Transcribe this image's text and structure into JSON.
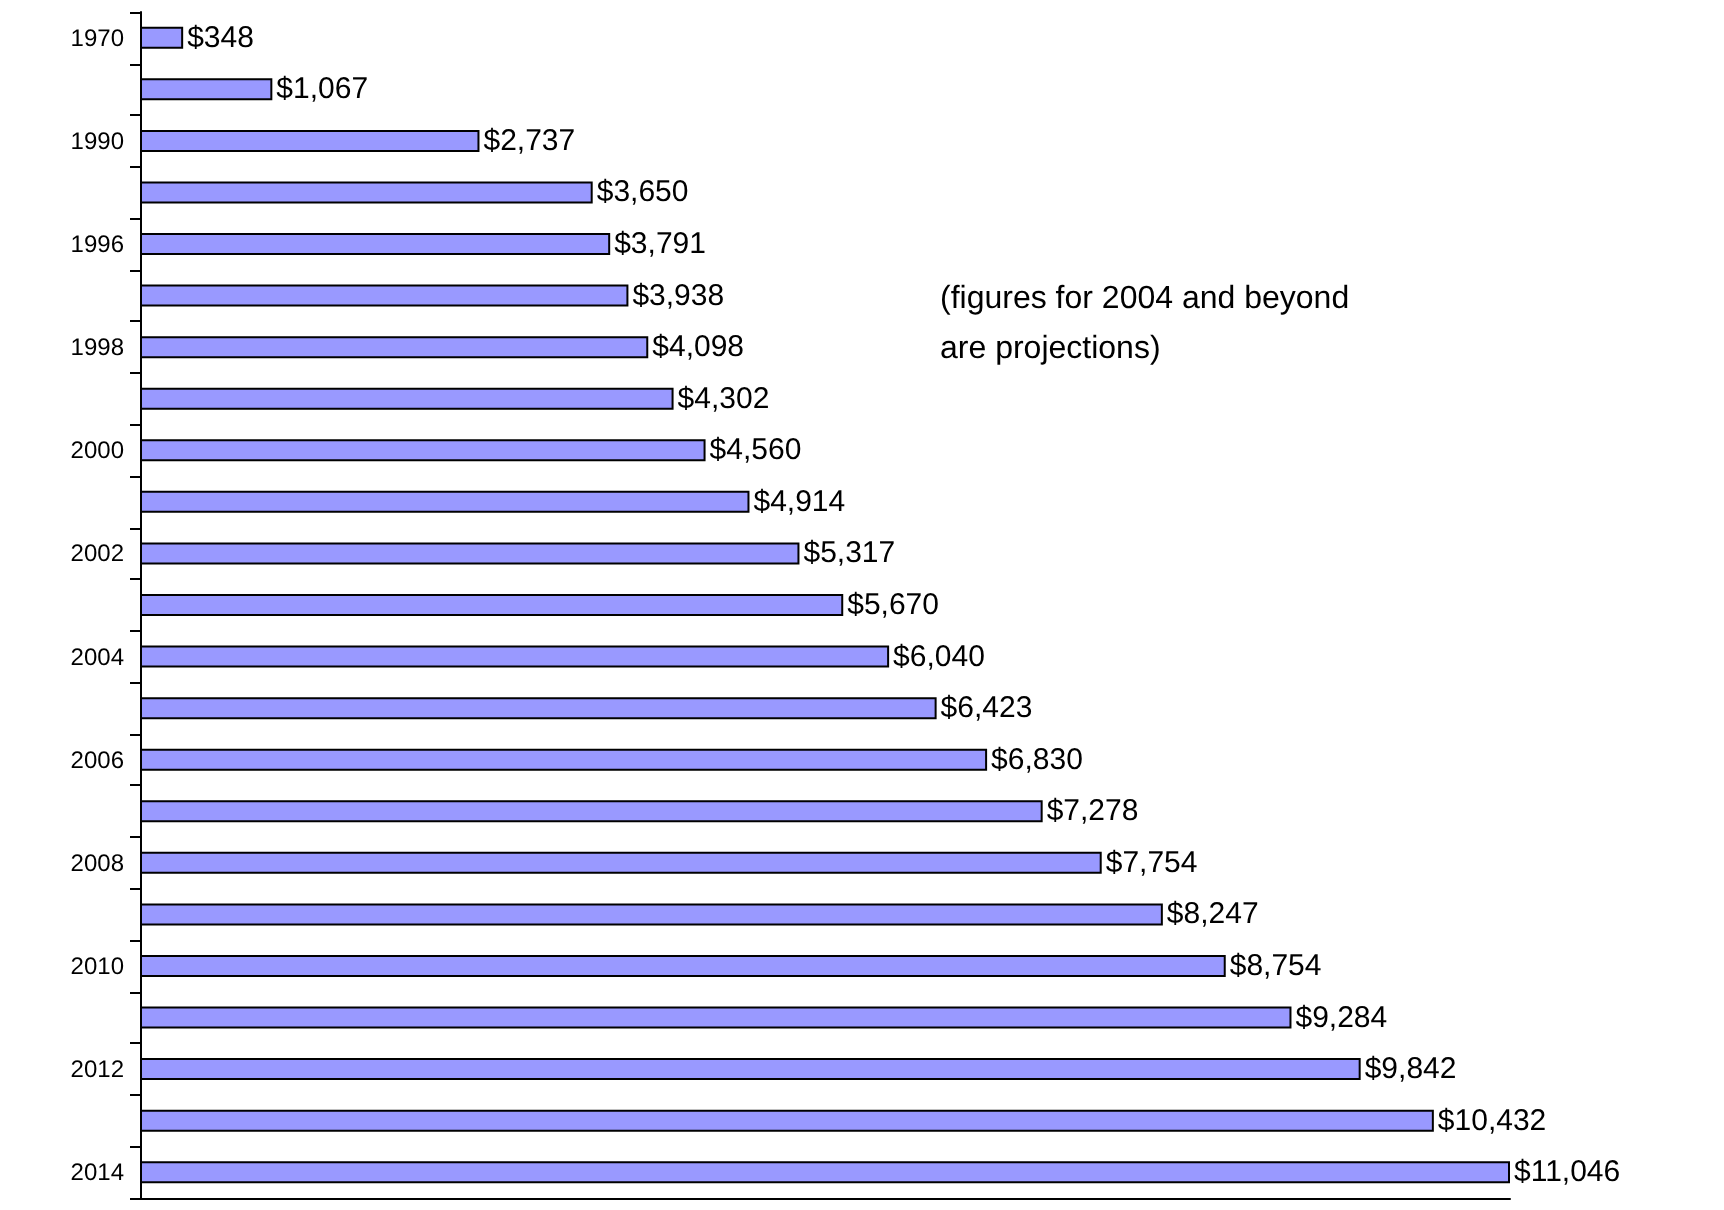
{
  "chart_data": {
    "type": "bar",
    "orientation": "horizontal",
    "categories": [
      "1970",
      null,
      "1990",
      null,
      "1996",
      null,
      "1998",
      null,
      "2000",
      null,
      "2002",
      null,
      "2004",
      null,
      "2006",
      null,
      "2008",
      null,
      "2010",
      null,
      "2012",
      null,
      "2014"
    ],
    "values": [
      348,
      1067,
      2737,
      3650,
      3791,
      3938,
      4098,
      4302,
      4560,
      4914,
      5317,
      5670,
      6040,
      6423,
      6830,
      7278,
      7754,
      8247,
      8754,
      9284,
      9842,
      10432,
      11046
    ],
    "value_labels": [
      "$348",
      "$1,067",
      "$2,737",
      "$3,650",
      "$3,791",
      "$3,938",
      "$4,098",
      "$4,302",
      "$4,560",
      "$4,914",
      "$5,317",
      "$5,670",
      "$6,040",
      "$6,423",
      "$6,830",
      "$7,278",
      "$7,754",
      "$8,247",
      "$8,754",
      "$9,284",
      "$9,842",
      "$10,432",
      "$11,046"
    ],
    "color": "#9999ff",
    "annotations": [
      "(figures for 2004 and beyond\nare projections)"
    ]
  }
}
